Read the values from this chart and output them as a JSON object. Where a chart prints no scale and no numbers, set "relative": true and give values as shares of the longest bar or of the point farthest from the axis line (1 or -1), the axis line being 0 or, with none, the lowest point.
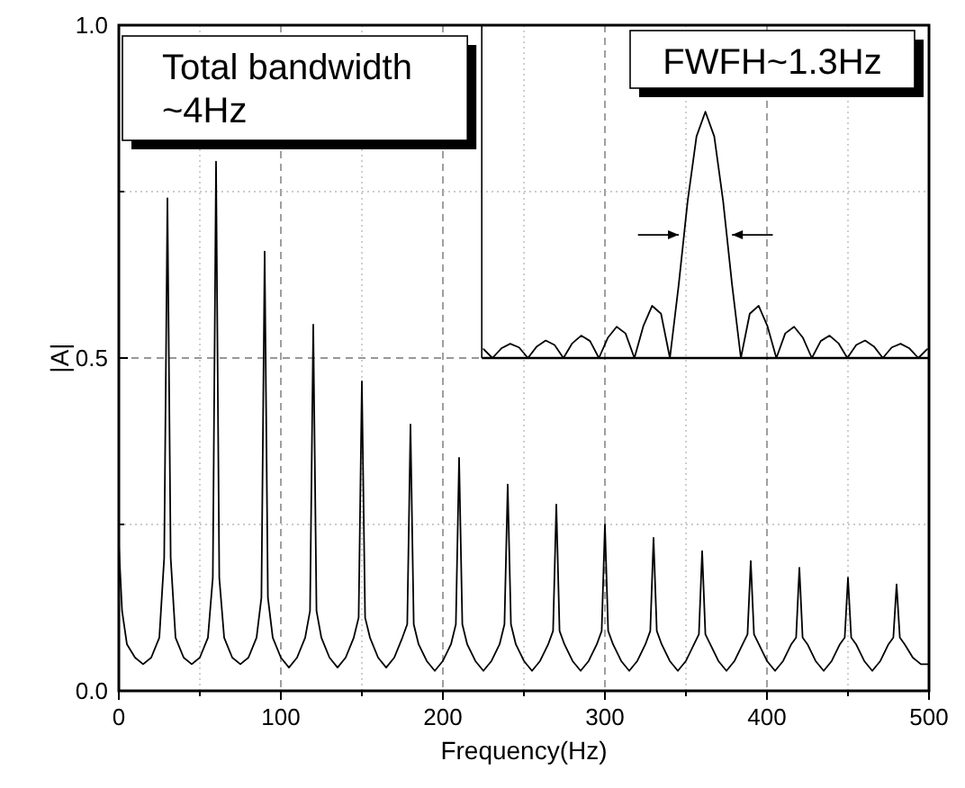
{
  "chart_data": [
    {
      "type": "line",
      "xlabel": "Frequency(Hz)",
      "ylabel": "|A|",
      "xlim": [
        0,
        500
      ],
      "ylim": [
        0,
        1
      ],
      "xticks": [
        0,
        {
          "value": 50,
          "label": null
        },
        100,
        {
          "value": 150,
          "label": null
        },
        200,
        {
          "value": 250,
          "label": null
        },
        300,
        {
          "value": 350,
          "label": null
        },
        400,
        {
          "value": 450,
          "label": null
        },
        500
      ],
      "yticks": [
        {
          "value": 0,
          "label": "0.0"
        },
        {
          "value": 0.25,
          "label": null
        },
        {
          "value": 0.5,
          "label": "0.5"
        },
        {
          "value": 0.75,
          "label": null
        },
        {
          "value": 1,
          "label": "1.0"
        }
      ],
      "grid": true,
      "annotations": [
        "Total bandwidth\n~4Hz"
      ],
      "series": [
        {
          "color": "#000000",
          "x": [
            0,
            2,
            5,
            10,
            15,
            20,
            25,
            28,
            30,
            32,
            35,
            40,
            45,
            50,
            55,
            58,
            60,
            62,
            65,
            70,
            75,
            80,
            85,
            88,
            90,
            92,
            95,
            100,
            105,
            110,
            115,
            118,
            120,
            122,
            125,
            130,
            135,
            140,
            145,
            148,
            150,
            152,
            155,
            160,
            165,
            170,
            175,
            178,
            180,
            182,
            185,
            190,
            195,
            200,
            205,
            208,
            210,
            212,
            215,
            220,
            225,
            230,
            235,
            238,
            240,
            242,
            245,
            250,
            255,
            260,
            265,
            268,
            270,
            272,
            275,
            280,
            285,
            290,
            295,
            298,
            300,
            302,
            305,
            310,
            315,
            320,
            325,
            328,
            330,
            332,
            335,
            340,
            345,
            350,
            355,
            358,
            360,
            362,
            365,
            370,
            375,
            380,
            385,
            388,
            390,
            392,
            395,
            400,
            405,
            410,
            415,
            418,
            420,
            422,
            425,
            430,
            435,
            440,
            445,
            448,
            450,
            452,
            455,
            460,
            465,
            470,
            475,
            478,
            480,
            482,
            485,
            490,
            495,
            500
          ],
          "values": [
            0.22,
            0.12,
            0.07,
            0.05,
            0.04,
            0.05,
            0.08,
            0.2,
            0.74,
            0.2,
            0.08,
            0.05,
            0.04,
            0.05,
            0.08,
            0.17,
            0.795,
            0.17,
            0.08,
            0.05,
            0.04,
            0.05,
            0.08,
            0.14,
            0.66,
            0.14,
            0.08,
            0.05,
            0.035,
            0.05,
            0.08,
            0.12,
            0.55,
            0.12,
            0.08,
            0.05,
            0.035,
            0.05,
            0.08,
            0.11,
            0.465,
            0.11,
            0.08,
            0.05,
            0.035,
            0.05,
            0.08,
            0.1,
            0.4,
            0.1,
            0.07,
            0.045,
            0.03,
            0.045,
            0.07,
            0.1,
            0.35,
            0.1,
            0.07,
            0.045,
            0.03,
            0.045,
            0.07,
            0.1,
            0.31,
            0.1,
            0.07,
            0.045,
            0.03,
            0.045,
            0.07,
            0.09,
            0.28,
            0.09,
            0.07,
            0.045,
            0.03,
            0.045,
            0.07,
            0.09,
            0.25,
            0.09,
            0.07,
            0.045,
            0.03,
            0.045,
            0.07,
            0.09,
            0.23,
            0.09,
            0.07,
            0.045,
            0.03,
            0.045,
            0.07,
            0.085,
            0.21,
            0.085,
            0.07,
            0.045,
            0.03,
            0.045,
            0.07,
            0.085,
            0.195,
            0.085,
            0.07,
            0.045,
            0.03,
            0.045,
            0.07,
            0.08,
            0.185,
            0.08,
            0.07,
            0.045,
            0.03,
            0.045,
            0.07,
            0.08,
            0.17,
            0.08,
            0.07,
            0.045,
            0.03,
            0.045,
            0.07,
            0.08,
            0.16,
            0.08,
            0.07,
            0.05,
            0.04,
            0.04
          ]
        }
      ]
    },
    {
      "type": "line",
      "relative": true,
      "title": "FWFH~1.3Hz",
      "categories": [
        null,
        null,
        null,
        null,
        null,
        null,
        null,
        null,
        null,
        null,
        null,
        null,
        null,
        null,
        null,
        null,
        null,
        null,
        null,
        null,
        null,
        null,
        null,
        null,
        null,
        null,
        null,
        null,
        null,
        null,
        null,
        null,
        null,
        null,
        null,
        null,
        null,
        null,
        null,
        null,
        null,
        null,
        null,
        null,
        null,
        null,
        null,
        null,
        null,
        null,
        null
      ],
      "series": [
        {
          "color": "#000000",
          "values": [
            0.036,
            0,
            0.039,
            0.058,
            0.043,
            0,
            0.047,
            0.071,
            0.053,
            0,
            0.06,
            0.091,
            0.069,
            0,
            0.082,
            0.127,
            0.1,
            0,
            0.129,
            0.212,
            0.18,
            0,
            0.3,
            0.637,
            0.9,
            1,
            0.9,
            0.637,
            0.3,
            0,
            0.18,
            0.212,
            0.129,
            0,
            0.1,
            0.127,
            0.082,
            0,
            0.069,
            0.091,
            0.06,
            0,
            0.053,
            0.071,
            0.047,
            0,
            0.043,
            0.058,
            0.039,
            0,
            0.036
          ]
        }
      ]
    }
  ]
}
